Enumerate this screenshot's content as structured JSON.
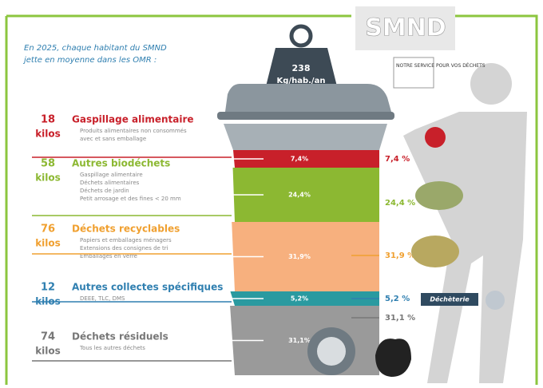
{
  "header": {
    "intro_line1": "En 2025, chaque habitant du SMND",
    "intro_line2": "jette en moyenne dans les OMR :",
    "weight_value": "238",
    "weight_unit": "Kg/hab./an",
    "logo": "SMND",
    "logo_tagline": "NOTRE SERVICE POUR VOS DÉCHETS"
  },
  "items": [
    {
      "kilos": "18",
      "unit": "kilos",
      "label": "Gaspillage alimentaire",
      "details": [
        "Produits alimentaires non consommés",
        "avec et sans emballage"
      ],
      "bin_percent": "7,4%",
      "percent": "7,4 %"
    },
    {
      "kilos": "58",
      "unit": "kilos",
      "label": "Autres biodéchets",
      "details": [
        "Gaspillage alimentaire",
        "Déchets alimentaires",
        "Déchets de jardin",
        "Petit arrosage et des fines < 20 mm"
      ],
      "bin_percent": "24,4%",
      "percent": "24,4 %"
    },
    {
      "kilos": "76",
      "unit": "kilos",
      "label": "Déchets recyclables",
      "details": [
        "Papiers et emballages ménagers",
        "Extensions des consignes de tri",
        "Emballages en verre"
      ],
      "bin_percent": "31,9%",
      "percent": "31,9 %"
    },
    {
      "kilos": "12",
      "unit": "kilos",
      "label": "Autres collectes spécifiques",
      "details": [
        "DEEE, TLC, DMS"
      ],
      "bin_percent": "5,2%",
      "percent": "5,2 %",
      "badge": "Déchèterie"
    },
    {
      "kilos": "74",
      "unit": "kilos",
      "label": "Déchets résiduels",
      "details": [
        "Tous les autres déchets"
      ],
      "bin_percent": "31,1%",
      "percent": "31,1 %"
    }
  ]
}
